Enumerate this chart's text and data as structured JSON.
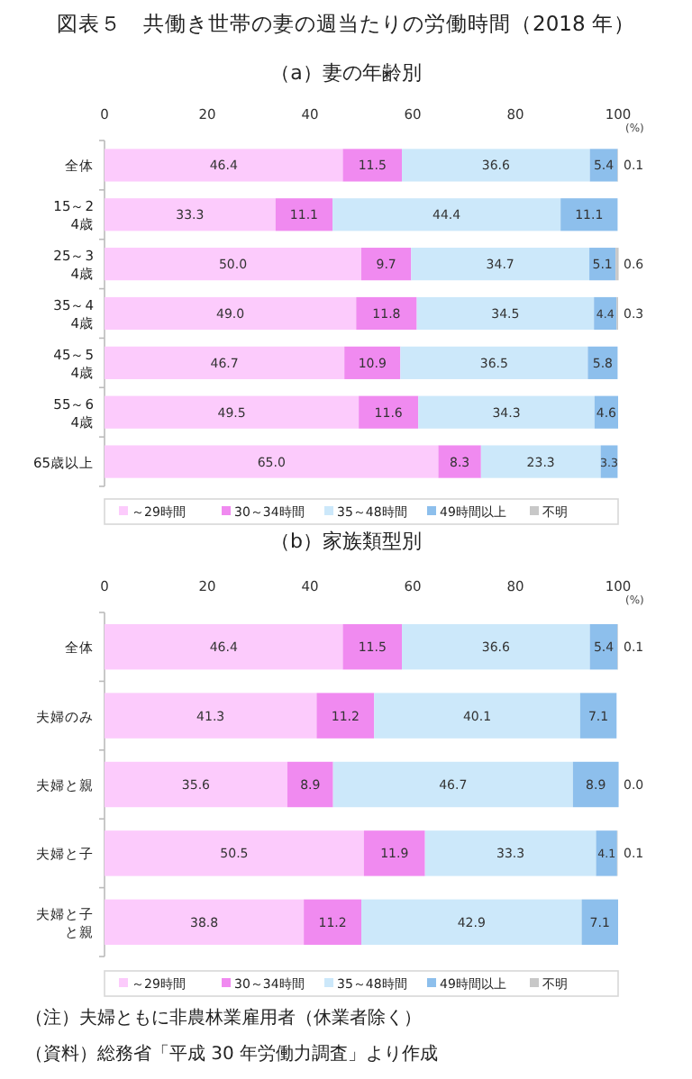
{
  "chart_data": [
    {
      "type": "bar",
      "orientation": "horizontal",
      "stacked": true,
      "title": "図表５　共働き世帯の妻の週当たりの労働時間（2018 年）",
      "subtitle": "（a）妻の年齢別",
      "xlabel": "(%)",
      "xlim": [
        0,
        100
      ],
      "xticks": [
        0,
        20,
        40,
        60,
        80,
        100
      ],
      "grid": false,
      "legend": "bottom",
      "categories": [
        "全体",
        "15～24歳",
        "25～34歳",
        "35～44歳",
        "45～54歳",
        "55～64歳",
        "65歳以上"
      ],
      "series": [
        {
          "name": "～29時間",
          "color": "#fccbfc",
          "values": [
            46.4,
            33.3,
            50.0,
            49.0,
            46.7,
            49.5,
            65.0
          ],
          "value_labels": [
            "46.4",
            "33.3",
            "50.0",
            "49.0",
            "46.7",
            "49.5",
            "65.0"
          ]
        },
        {
          "name": "30～34時間",
          "color": "#f08af0",
          "values": [
            11.5,
            11.1,
            9.7,
            11.8,
            10.9,
            11.6,
            8.3
          ],
          "value_labels": [
            "11.5",
            "11.1",
            "9.7",
            "11.8",
            "10.9",
            "11.6",
            "8.3"
          ]
        },
        {
          "name": "35～48時間",
          "color": "#cce8fa",
          "values": [
            36.6,
            44.4,
            34.7,
            34.5,
            36.5,
            34.3,
            23.3
          ],
          "value_labels": [
            "36.6",
            "44.4",
            "34.7",
            "34.5",
            "36.5",
            "34.3",
            "23.3"
          ]
        },
        {
          "name": "49時間以上",
          "color": "#8dbfec",
          "values": [
            5.4,
            11.1,
            5.1,
            4.4,
            5.8,
            4.6,
            3.3
          ],
          "value_labels": [
            "5.4",
            "11.1",
            "5.1",
            "4.4",
            "5.8",
            "4.6",
            "3.3"
          ]
        },
        {
          "name": "不明",
          "color": "#c8c8c8",
          "values": [
            0.1,
            null,
            0.6,
            0.3,
            null,
            null,
            null
          ],
          "value_labels": [
            "0.1",
            null,
            "0.6",
            "0.3",
            null,
            null,
            null
          ]
        }
      ]
    },
    {
      "type": "bar",
      "orientation": "horizontal",
      "stacked": true,
      "subtitle": "（b）家族類型別",
      "xlabel": "(%)",
      "xlim": [
        0,
        100
      ],
      "xticks": [
        0,
        20,
        40,
        60,
        80,
        100
      ],
      "grid": false,
      "legend": "bottom",
      "categories": [
        "全体",
        "夫婦のみ",
        "夫婦と親",
        "夫婦と子",
        "夫婦と子と親"
      ],
      "series": [
        {
          "name": "～29時間",
          "color": "#fccbfc",
          "values": [
            46.4,
            41.3,
            35.6,
            50.5,
            38.8
          ],
          "value_labels": [
            "46.4",
            "41.3",
            "35.6",
            "50.5",
            "38.8"
          ]
        },
        {
          "name": "30～34時間",
          "color": "#f08af0",
          "values": [
            11.5,
            11.2,
            8.9,
            11.9,
            11.2
          ],
          "value_labels": [
            "11.5",
            "11.2",
            "8.9",
            "11.9",
            "11.2"
          ]
        },
        {
          "name": "35～48時間",
          "color": "#cce8fa",
          "values": [
            36.6,
            40.1,
            46.7,
            33.3,
            42.9
          ],
          "value_labels": [
            "36.6",
            "40.1",
            "46.7",
            "33.3",
            "42.9"
          ]
        },
        {
          "name": "49時間以上",
          "color": "#8dbfec",
          "values": [
            5.4,
            7.1,
            8.9,
            4.1,
            7.1
          ],
          "value_labels": [
            "5.4",
            "7.1",
            "8.9",
            "4.1",
            "7.1"
          ]
        },
        {
          "name": "不明",
          "color": "#c8c8c8",
          "values": [
            0.1,
            null,
            0.0,
            0.1,
            null
          ],
          "value_labels": [
            "0.1",
            null,
            "0.0",
            "0.1",
            null
          ]
        }
      ],
      "annotations": [
        "（注）夫婦ともに非農林業雇用者（休業者除く）",
        "（資料）総務省「平成 30 年労働力調査」より作成"
      ]
    }
  ]
}
